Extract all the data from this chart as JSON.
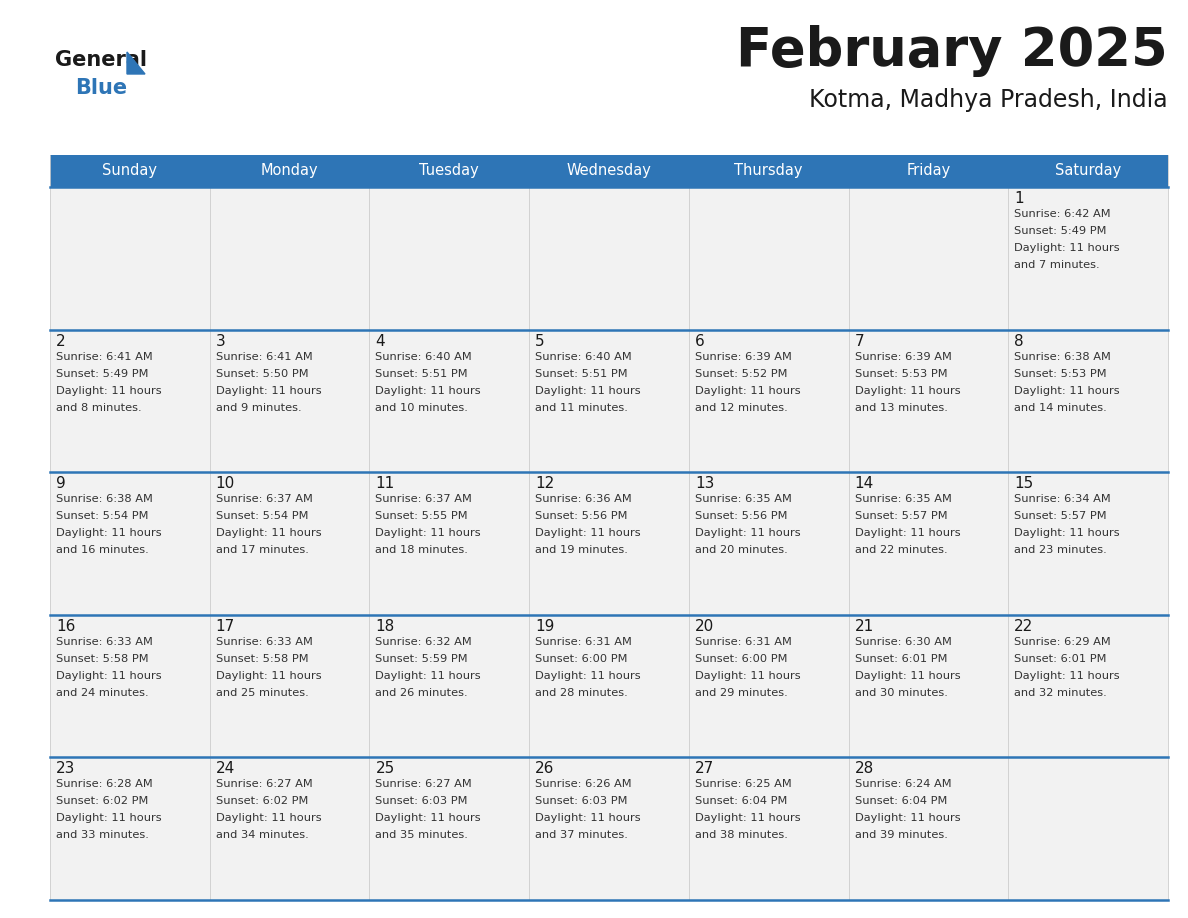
{
  "title": "February 2025",
  "subtitle": "Kotma, Madhya Pradesh, India",
  "header_color": "#2e75b6",
  "header_text_color": "#ffffff",
  "day_names": [
    "Sunday",
    "Monday",
    "Tuesday",
    "Wednesday",
    "Thursday",
    "Friday",
    "Saturday"
  ],
  "bg_color": "#ffffff",
  "cell_bg": "#f2f2f2",
  "line_color": "#2e75b6",
  "date_color": "#1a1a1a",
  "text_color": "#333333",
  "grid_color": "#cccccc",
  "calendar": [
    [
      {
        "day": null,
        "sunrise": null,
        "sunset": null,
        "daylight": null
      },
      {
        "day": null,
        "sunrise": null,
        "sunset": null,
        "daylight": null
      },
      {
        "day": null,
        "sunrise": null,
        "sunset": null,
        "daylight": null
      },
      {
        "day": null,
        "sunrise": null,
        "sunset": null,
        "daylight": null
      },
      {
        "day": null,
        "sunrise": null,
        "sunset": null,
        "daylight": null
      },
      {
        "day": null,
        "sunrise": null,
        "sunset": null,
        "daylight": null
      },
      {
        "day": 1,
        "sunrise": "6:42 AM",
        "sunset": "5:49 PM",
        "daylight": "11 hours\nand 7 minutes."
      }
    ],
    [
      {
        "day": 2,
        "sunrise": "6:41 AM",
        "sunset": "5:49 PM",
        "daylight": "11 hours\nand 8 minutes."
      },
      {
        "day": 3,
        "sunrise": "6:41 AM",
        "sunset": "5:50 PM",
        "daylight": "11 hours\nand 9 minutes."
      },
      {
        "day": 4,
        "sunrise": "6:40 AM",
        "sunset": "5:51 PM",
        "daylight": "11 hours\nand 10 minutes."
      },
      {
        "day": 5,
        "sunrise": "6:40 AM",
        "sunset": "5:51 PM",
        "daylight": "11 hours\nand 11 minutes."
      },
      {
        "day": 6,
        "sunrise": "6:39 AM",
        "sunset": "5:52 PM",
        "daylight": "11 hours\nand 12 minutes."
      },
      {
        "day": 7,
        "sunrise": "6:39 AM",
        "sunset": "5:53 PM",
        "daylight": "11 hours\nand 13 minutes."
      },
      {
        "day": 8,
        "sunrise": "6:38 AM",
        "sunset": "5:53 PM",
        "daylight": "11 hours\nand 14 minutes."
      }
    ],
    [
      {
        "day": 9,
        "sunrise": "6:38 AM",
        "sunset": "5:54 PM",
        "daylight": "11 hours\nand 16 minutes."
      },
      {
        "day": 10,
        "sunrise": "6:37 AM",
        "sunset": "5:54 PM",
        "daylight": "11 hours\nand 17 minutes."
      },
      {
        "day": 11,
        "sunrise": "6:37 AM",
        "sunset": "5:55 PM",
        "daylight": "11 hours\nand 18 minutes."
      },
      {
        "day": 12,
        "sunrise": "6:36 AM",
        "sunset": "5:56 PM",
        "daylight": "11 hours\nand 19 minutes."
      },
      {
        "day": 13,
        "sunrise": "6:35 AM",
        "sunset": "5:56 PM",
        "daylight": "11 hours\nand 20 minutes."
      },
      {
        "day": 14,
        "sunrise": "6:35 AM",
        "sunset": "5:57 PM",
        "daylight": "11 hours\nand 22 minutes."
      },
      {
        "day": 15,
        "sunrise": "6:34 AM",
        "sunset": "5:57 PM",
        "daylight": "11 hours\nand 23 minutes."
      }
    ],
    [
      {
        "day": 16,
        "sunrise": "6:33 AM",
        "sunset": "5:58 PM",
        "daylight": "11 hours\nand 24 minutes."
      },
      {
        "day": 17,
        "sunrise": "6:33 AM",
        "sunset": "5:58 PM",
        "daylight": "11 hours\nand 25 minutes."
      },
      {
        "day": 18,
        "sunrise": "6:32 AM",
        "sunset": "5:59 PM",
        "daylight": "11 hours\nand 26 minutes."
      },
      {
        "day": 19,
        "sunrise": "6:31 AM",
        "sunset": "6:00 PM",
        "daylight": "11 hours\nand 28 minutes."
      },
      {
        "day": 20,
        "sunrise": "6:31 AM",
        "sunset": "6:00 PM",
        "daylight": "11 hours\nand 29 minutes."
      },
      {
        "day": 21,
        "sunrise": "6:30 AM",
        "sunset": "6:01 PM",
        "daylight": "11 hours\nand 30 minutes."
      },
      {
        "day": 22,
        "sunrise": "6:29 AM",
        "sunset": "6:01 PM",
        "daylight": "11 hours\nand 32 minutes."
      }
    ],
    [
      {
        "day": 23,
        "sunrise": "6:28 AM",
        "sunset": "6:02 PM",
        "daylight": "11 hours\nand 33 minutes."
      },
      {
        "day": 24,
        "sunrise": "6:27 AM",
        "sunset": "6:02 PM",
        "daylight": "11 hours\nand 34 minutes."
      },
      {
        "day": 25,
        "sunrise": "6:27 AM",
        "sunset": "6:03 PM",
        "daylight": "11 hours\nand 35 minutes."
      },
      {
        "day": 26,
        "sunrise": "6:26 AM",
        "sunset": "6:03 PM",
        "daylight": "11 hours\nand 37 minutes."
      },
      {
        "day": 27,
        "sunrise": "6:25 AM",
        "sunset": "6:04 PM",
        "daylight": "11 hours\nand 38 minutes."
      },
      {
        "day": 28,
        "sunrise": "6:24 AM",
        "sunset": "6:04 PM",
        "daylight": "11 hours\nand 39 minutes."
      },
      {
        "day": null,
        "sunrise": null,
        "sunset": null,
        "daylight": null
      }
    ]
  ]
}
